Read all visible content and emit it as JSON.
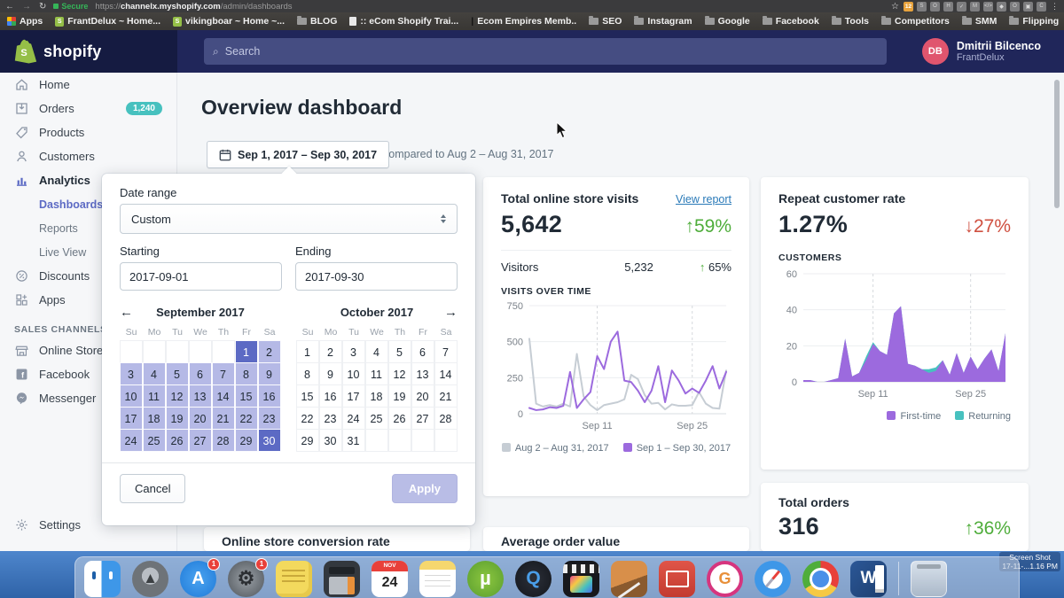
{
  "browser": {
    "secure_label": "Secure",
    "url_scheme": "https://",
    "url_host": "channelx.myshopify.com",
    "url_path": "/admin/dashboards",
    "extensions": [
      "12",
      "S",
      "O",
      "H",
      "✓",
      "M",
      "</>",
      "◆",
      "O",
      "▣",
      "C"
    ],
    "bookmarks": [
      {
        "label": "Apps",
        "icon": "apps-grid"
      },
      {
        "label": "FrantDelux ~ Home...",
        "icon": "shopify"
      },
      {
        "label": "vikingboar ~ Home ~...",
        "icon": "shopify"
      },
      {
        "label": "BLOG",
        "icon": "folder"
      },
      {
        "label": ":: eCom Shopify Trai...",
        "icon": "page"
      },
      {
        "label": "Ecom Empires Memb..",
        "icon": "pipe"
      },
      {
        "label": "SEO",
        "icon": "folder"
      },
      {
        "label": "Instagram",
        "icon": "folder"
      },
      {
        "label": "Google",
        "icon": "folder"
      },
      {
        "label": "Facebook",
        "icon": "folder"
      },
      {
        "label": "Tools",
        "icon": "folder"
      },
      {
        "label": "Competitors",
        "icon": "folder"
      },
      {
        "label": "SMM",
        "icon": "folder"
      },
      {
        "label": "Flipping",
        "icon": "folder"
      }
    ]
  },
  "header": {
    "brand": "shopify",
    "search_placeholder": "Search",
    "user": {
      "initials": "DB",
      "name": "Dmitrii Bilcenco",
      "store": "FrantDelux"
    }
  },
  "sidebar": {
    "items": [
      {
        "label": "Home",
        "icon": "home"
      },
      {
        "label": "Orders",
        "icon": "orders",
        "badge": "1,240"
      },
      {
        "label": "Products",
        "icon": "products"
      },
      {
        "label": "Customers",
        "icon": "customers"
      },
      {
        "label": "Analytics",
        "icon": "analytics",
        "active": true
      },
      {
        "label": "Dashboards",
        "sub": true,
        "active": true
      },
      {
        "label": "Reports",
        "sub": true
      },
      {
        "label": "Live View",
        "sub": true
      },
      {
        "label": "Discounts",
        "icon": "discounts"
      },
      {
        "label": "Apps",
        "icon": "apps"
      }
    ],
    "sales_channels_label": "SALES CHANNELS",
    "channels": [
      {
        "label": "Online Store",
        "icon": "store"
      },
      {
        "label": "Facebook",
        "icon": "facebook"
      },
      {
        "label": "Messenger",
        "icon": "messenger"
      }
    ],
    "settings_label": "Settings"
  },
  "page": {
    "title": "Overview dashboard",
    "date_button": "Sep 1, 2017 – Sep 30, 2017",
    "compared": "compared to Aug 2 – Aug 31, 2017"
  },
  "date_picker": {
    "label": "Date range",
    "preset": "Custom",
    "starting_label": "Starting",
    "ending_label": "Ending",
    "starting_value": "2017-09-01",
    "ending_value": "2017-09-30",
    "weekdays": [
      "Su",
      "Mo",
      "Tu",
      "We",
      "Th",
      "Fr",
      "Sa"
    ],
    "months": [
      {
        "title": "September 2017",
        "nav": "prev",
        "leading_blanks": 5,
        "days": 30,
        "range_start": 1,
        "range_end": 30,
        "selected": [
          1,
          30
        ]
      },
      {
        "title": "October 2017",
        "nav": "next",
        "leading_blanks": 0,
        "days": 31
      }
    ],
    "cancel_label": "Cancel",
    "apply_label": "Apply"
  },
  "cards": {
    "visits": {
      "title": "Total online store visits",
      "link": "View report",
      "value": "5,642",
      "delta": "59%",
      "delta_dir": "up",
      "delta_arrow": "↑",
      "visitors_label": "Visitors",
      "visitors_value": "5,232",
      "visitors_delta_arrow": "↑",
      "visitors_delta": "65%",
      "section": "VISITS OVER TIME"
    },
    "repeat": {
      "title": "Repeat customer rate",
      "value": "1.27%",
      "delta": "27%",
      "delta_dir": "down",
      "delta_arrow": "↓",
      "section": "CUSTOMERS"
    },
    "orders": {
      "title": "Total orders",
      "value": "316",
      "delta": "36%",
      "delta_dir": "up",
      "delta_arrow": "↑"
    },
    "conversion": {
      "title": "Online store conversion rate"
    },
    "aov": {
      "title": "Average order value"
    }
  },
  "chart_data": [
    {
      "type": "line",
      "title": "VISITS OVER TIME",
      "ylim": [
        0,
        750
      ],
      "yticks": [
        0,
        250,
        500,
        750
      ],
      "x_labels": [
        "Sep 11",
        "Sep 25"
      ],
      "x_gridline_idx": [
        10,
        24
      ],
      "grid": true,
      "legend_position": "bottom",
      "series": [
        {
          "name": "Aug 2 – Aug 31, 2017",
          "color": "#c6cdd4",
          "values": [
            520,
            70,
            50,
            60,
            50,
            70,
            50,
            415,
            120,
            60,
            25,
            60,
            70,
            80,
            100,
            270,
            240,
            130,
            70,
            75,
            30,
            65,
            55,
            55,
            60,
            150,
            70,
            40,
            35,
            300
          ]
        },
        {
          "name": "Sep 1 – Sep 30, 2017",
          "color": "#9c6ade",
          "values": [
            40,
            25,
            30,
            45,
            40,
            55,
            290,
            40,
            100,
            150,
            400,
            310,
            500,
            570,
            230,
            220,
            160,
            80,
            160,
            330,
            80,
            300,
            230,
            140,
            175,
            145,
            230,
            330,
            175,
            290
          ]
        }
      ]
    },
    {
      "type": "area",
      "title": "CUSTOMERS",
      "ylim": [
        0,
        60
      ],
      "yticks": [
        0,
        20,
        40,
        60
      ],
      "x_labels": [
        "Sep 11",
        "Sep 25"
      ],
      "x_gridline_idx": [
        10,
        24
      ],
      "grid": true,
      "legend_position": "bottom-right",
      "series": [
        {
          "name": "First-time",
          "color": "#9c6ade",
          "values": [
            1,
            1,
            0,
            0,
            1,
            2,
            24,
            3,
            5,
            12,
            21,
            17,
            15,
            38,
            42,
            10,
            9,
            7,
            5,
            6,
            12,
            4,
            16,
            5,
            14,
            7,
            13,
            18,
            6,
            27
          ]
        },
        {
          "name": "Returning",
          "color": "#47c1bf",
          "values": [
            0,
            0,
            0,
            0,
            0,
            0,
            0,
            0,
            0,
            2,
            1,
            0,
            0,
            0,
            0,
            0,
            0,
            0,
            2,
            2,
            0,
            0,
            0,
            0,
            0,
            0,
            0,
            0,
            0,
            0
          ]
        }
      ]
    }
  ],
  "dock": {
    "items": [
      {
        "name": "finder"
      },
      {
        "name": "launchpad",
        "glyph": "▲"
      },
      {
        "name": "appstore",
        "glyph": "A",
        "badge": "1"
      },
      {
        "name": "sysprefs",
        "glyph": "⚙",
        "badge": "1"
      },
      {
        "name": "stickies"
      },
      {
        "name": "calc"
      },
      {
        "name": "calendar",
        "month": "NOV",
        "day": "24"
      },
      {
        "name": "notes"
      },
      {
        "name": "utorrent",
        "glyph": "µ"
      },
      {
        "name": "quicktime",
        "glyph": "Q"
      },
      {
        "name": "finalcut"
      },
      {
        "name": "preview"
      },
      {
        "name": "rdp"
      },
      {
        "name": "gramblr",
        "glyph": "G"
      },
      {
        "name": "safari"
      },
      {
        "name": "chrome"
      },
      {
        "name": "word",
        "glyph": "W"
      },
      {
        "name": "divider"
      },
      {
        "name": "trash"
      }
    ],
    "screenshot_label_line1": "Screen Shot",
    "screenshot_label_line2": "17-11-...1.16 PM"
  },
  "colors": {
    "accent_indigo": "#5c6ac4",
    "range_purple": "#b5b9e6",
    "chart_purple": "#9c6ade",
    "teal": "#47c1bf",
    "green": "#4fad3b",
    "red": "#cf5040",
    "link_blue": "#2a7ab8",
    "header_navy": "#20265a"
  }
}
